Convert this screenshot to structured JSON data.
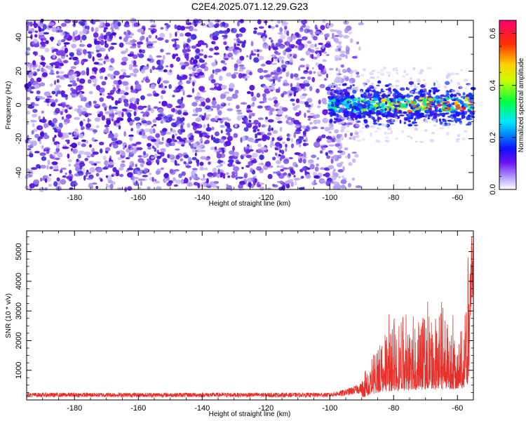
{
  "title": "C2E4.2025.071.12.29.G23",
  "colors": {
    "line": "#e8302a",
    "spectrogram_low": "#b9a6ef",
    "spectrogram_mid": "#6a1ee8",
    "frame": "#000000"
  },
  "chart_data": [
    {
      "type": "heatmap",
      "name": "spectrogram",
      "xlabel": "Height of straight line (km)",
      "ylabel": "Frequency (Hz)",
      "xlim": [
        -195,
        -55
      ],
      "ylim": [
        -50,
        50
      ],
      "xticks": [
        -180,
        -160,
        -140,
        -120,
        -100,
        -80,
        -60
      ],
      "yticks": [
        -40,
        -20,
        0,
        20,
        40
      ],
      "noise_region": {
        "x": [
          -195,
          -90
        ],
        "y": [
          -50,
          50
        ]
      },
      "signal_band": {
        "x": [
          -100,
          -55
        ],
        "center_y": 0,
        "half_width_y": 8
      },
      "colorbar": {
        "label": "Normalized spectral amplitude",
        "range": [
          0,
          0.65
        ],
        "ticks": [
          0.0,
          0.2,
          0.4,
          0.6
        ]
      }
    },
    {
      "type": "line",
      "name": "snr",
      "xlabel": "Height of straight line (km)",
      "ylabel": "SNR (10 * v/v)",
      "xlim": [
        -195,
        -55
      ],
      "ylim": [
        0,
        5700
      ],
      "xticks": [
        -180,
        -160,
        -140,
        -120,
        -100,
        -80,
        -60
      ],
      "yticks": [
        1000,
        2000,
        3000,
        4000,
        5000
      ],
      "profile": [
        {
          "x": -195,
          "y": 170
        },
        {
          "x": -100,
          "y": 170
        },
        {
          "x": -95,
          "y": 250
        },
        {
          "x": -90,
          "y": 400
        },
        {
          "x": -87,
          "y": 800
        },
        {
          "x": -84,
          "y": 1400
        },
        {
          "x": -80,
          "y": 1500
        },
        {
          "x": -76,
          "y": 1600
        },
        {
          "x": -70,
          "y": 1700
        },
        {
          "x": -65,
          "y": 1750
        },
        {
          "x": -60,
          "y": 1700
        },
        {
          "x": -57,
          "y": 2000
        },
        {
          "x": -55.5,
          "y": 5600
        }
      ]
    }
  ]
}
